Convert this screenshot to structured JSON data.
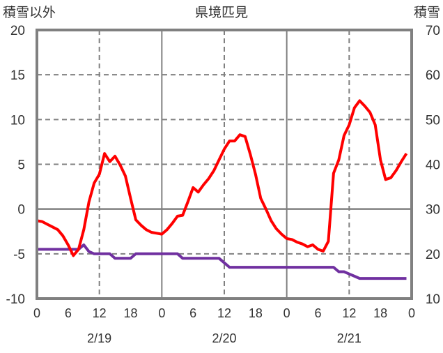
{
  "chart_data": {
    "type": "line",
    "title": "県境匹見",
    "ylabel_left": "積雪以外",
    "ylabel_right": "積雪",
    "ylim_left": [
      -10,
      20
    ],
    "yticks_left": [
      "20",
      "15",
      "10",
      "5",
      "0",
      "-5",
      "-10"
    ],
    "ylim_right": [
      10,
      70
    ],
    "yticks_right": [
      "70",
      "60",
      "50",
      "40",
      "30",
      "20",
      "10"
    ],
    "x_hours_range": [
      0,
      72
    ],
    "xtick_labels": [
      "0",
      "6",
      "12",
      "18",
      "0",
      "6",
      "12",
      "18",
      "0",
      "6",
      "12",
      "18",
      "0"
    ],
    "date_labels": [
      "2/19",
      "2/20",
      "2/21"
    ],
    "grid": true,
    "series": [
      {
        "name": "積雪以外",
        "axis": "left",
        "color": "#ff0000",
        "values": [
          -1.3,
          -1.4,
          -1.7,
          -2.0,
          -2.3,
          -3.0,
          -4.0,
          -5.2,
          -4.5,
          -2.3,
          0.8,
          2.9,
          3.9,
          6.2,
          5.3,
          5.9,
          4.9,
          3.7,
          1.2,
          -1.2,
          -1.8,
          -2.3,
          -2.6,
          -2.7,
          -2.8,
          -2.3,
          -1.6,
          -0.8,
          -0.7,
          0.8,
          2.4,
          1.9,
          2.7,
          3.4,
          4.3,
          5.5,
          6.7,
          7.6,
          7.6,
          8.3,
          8.1,
          6.1,
          3.9,
          1.2,
          0.0,
          -1.3,
          -2.2,
          -2.8,
          -3.3,
          -3.4,
          -3.7,
          -3.9,
          -4.2,
          -4.0,
          -4.5,
          -4.7,
          -3.6,
          4.0,
          5.5,
          8.2,
          9.4,
          11.3,
          12.1,
          11.5,
          10.8,
          9.4,
          5.5,
          3.3,
          3.5,
          4.3,
          5.3,
          6.2
        ]
      },
      {
        "name": "積雪",
        "axis": "right",
        "color": "#7030a0",
        "values": [
          21,
          21,
          21,
          21,
          21,
          21,
          21,
          21,
          21,
          22,
          20.5,
          20,
          20,
          20,
          20,
          19,
          19,
          19,
          19,
          20,
          20,
          20,
          20,
          20,
          20,
          20,
          20,
          20,
          19,
          19,
          19,
          19,
          19,
          19,
          19,
          19,
          18,
          17,
          17,
          17,
          17,
          17,
          17,
          17,
          17,
          17,
          17,
          17,
          17,
          17,
          17,
          17,
          17,
          17,
          17,
          17,
          17,
          17,
          16,
          16,
          15.5,
          15,
          14.5,
          14.5,
          14.5,
          14.5,
          14.5,
          14.5,
          14.5,
          14.5,
          14.5,
          14.5
        ]
      }
    ]
  }
}
